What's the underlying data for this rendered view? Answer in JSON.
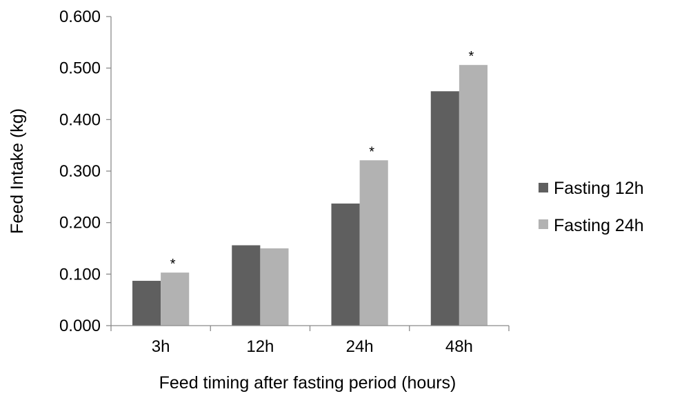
{
  "chart_data": {
    "type": "bar",
    "title": "",
    "xlabel": "Feed timing after fasting period (hours)",
    "ylabel": "Feed Intake (kg)",
    "categories": [
      "3h",
      "12h",
      "24h",
      "48h"
    ],
    "series": [
      {
        "name": "Fasting 12h",
        "color": "#5f5f5f",
        "values": [
          0.087,
          0.156,
          0.237,
          0.455
        ]
      },
      {
        "name": "Fasting 24h",
        "color": "#b2b2b2",
        "values": [
          0.103,
          0.15,
          0.321,
          0.506
        ]
      }
    ],
    "ylim": [
      0,
      0.6
    ],
    "yticks": [
      "0.000",
      "0.100",
      "0.200",
      "0.300",
      "0.400",
      "0.500",
      "0.600"
    ],
    "significance_marker": "*",
    "significant_categories": [
      "3h",
      "24h",
      "48h"
    ],
    "grid": false,
    "legend_position": "right"
  }
}
